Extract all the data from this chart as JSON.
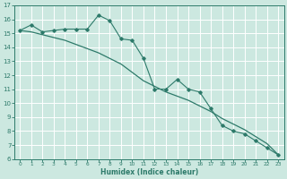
{
  "xlabel": "Humidex (Indice chaleur)",
  "background_color": "#cce8e0",
  "grid_color": "#ffffff",
  "line_color": "#2d7a6a",
  "xlim": [
    -0.5,
    23.5
  ],
  "ylim": [
    6,
    17
  ],
  "xticks": [
    0,
    1,
    2,
    3,
    4,
    5,
    6,
    7,
    8,
    9,
    10,
    11,
    12,
    13,
    14,
    15,
    16,
    17,
    18,
    19,
    20,
    21,
    22,
    23
  ],
  "yticks": [
    6,
    7,
    8,
    9,
    10,
    11,
    12,
    13,
    14,
    15,
    16,
    17
  ],
  "smooth_x": [
    0,
    1,
    2,
    3,
    4,
    5,
    6,
    7,
    8,
    9,
    10,
    11,
    12,
    13,
    14,
    15,
    16,
    17,
    18,
    19,
    20,
    21,
    22,
    23
  ],
  "smooth_y": [
    15.2,
    15.1,
    14.9,
    14.7,
    14.5,
    14.2,
    13.9,
    13.6,
    13.2,
    12.8,
    12.2,
    11.6,
    11.2,
    10.8,
    10.5,
    10.2,
    9.8,
    9.4,
    8.9,
    8.5,
    8.1,
    7.6,
    7.1,
    6.3
  ],
  "jagged_x": [
    0,
    1,
    2,
    3,
    4,
    5,
    6,
    7,
    8,
    9,
    10,
    11,
    12,
    13,
    14,
    15,
    16,
    17,
    18,
    19,
    20,
    21,
    22,
    23
  ],
  "jagged_y": [
    15.2,
    15.6,
    15.1,
    15.2,
    15.3,
    15.3,
    15.3,
    16.3,
    15.9,
    14.6,
    14.5,
    13.2,
    11.0,
    11.0,
    11.7,
    11.0,
    10.8,
    9.6,
    8.4,
    8.0,
    7.8,
    7.3,
    6.8,
    6.3
  ]
}
